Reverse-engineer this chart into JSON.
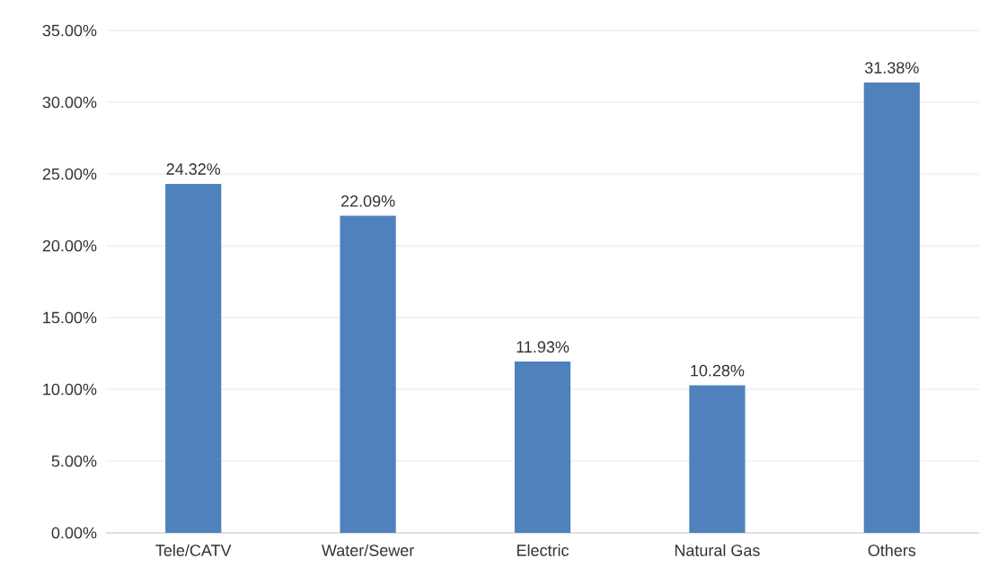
{
  "chart_data": {
    "type": "bar",
    "categories": [
      "Tele/CATV",
      "Water/Sewer",
      "Electric",
      "Natural Gas",
      "Others"
    ],
    "values": [
      24.32,
      22.09,
      11.93,
      10.28,
      31.38
    ],
    "value_labels": [
      "24.32%",
      "22.09%",
      "11.93%",
      "10.28%",
      "31.38%"
    ],
    "color": "#4f81bd",
    "ylim": [
      0,
      35
    ],
    "yticks": [
      {
        "value": 0,
        "label": "0.00%"
      },
      {
        "value": 5,
        "label": "5.00%"
      },
      {
        "value": 10,
        "label": "10.00%"
      },
      {
        "value": 15,
        "label": "15.00%"
      },
      {
        "value": 20,
        "label": "20.00%"
      },
      {
        "value": 25,
        "label": "25.00%"
      },
      {
        "value": 30,
        "label": "30.00%"
      },
      {
        "value": 35,
        "label": "35.00%"
      }
    ],
    "grid": "y"
  }
}
